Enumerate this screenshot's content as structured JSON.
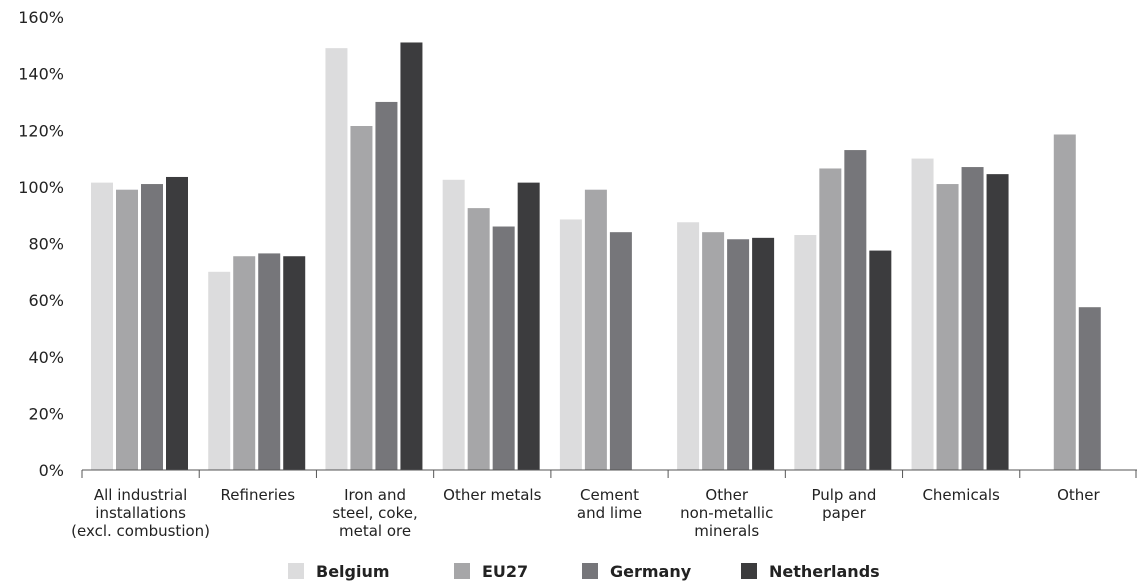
{
  "chart_data": {
    "type": "bar",
    "title": "",
    "xlabel": "",
    "ylabel": "",
    "ylim": [
      0,
      160
    ],
    "yticks": [
      "0%",
      "20%",
      "40%",
      "60%",
      "80%",
      "100%",
      "120%",
      "140%",
      "160%"
    ],
    "grid": false,
    "legend_position": "bottom",
    "categories": [
      [
        "All industrial",
        "installations",
        "(excl. combustion)"
      ],
      [
        "Refineries"
      ],
      [
        "Iron and",
        "steel, coke,",
        "metal ore"
      ],
      [
        "Other metals"
      ],
      [
        "Cement",
        "and lime"
      ],
      [
        "Other",
        "non-metallic",
        "minerals"
      ],
      [
        "Pulp and",
        "paper"
      ],
      [
        "Chemicals"
      ],
      [
        "Other"
      ]
    ],
    "series": [
      {
        "name": "Belgium",
        "color": "#dcdcdd",
        "values": [
          101.5,
          70,
          149,
          102.5,
          88.5,
          87.5,
          83,
          110,
          null
        ]
      },
      {
        "name": "EU27",
        "color": "#a6a6a8",
        "values": [
          99,
          75.5,
          121.5,
          92.5,
          99,
          84,
          106.5,
          101,
          118.5
        ]
      },
      {
        "name": "Germany",
        "color": "#76767a",
        "values": [
          101,
          76.5,
          130,
          86,
          84,
          81.5,
          113,
          107,
          57.5
        ]
      },
      {
        "name": "Netherlands",
        "color": "#3c3c3e",
        "values": [
          103.5,
          75.5,
          151,
          101.5,
          null,
          82,
          77.5,
          104.5,
          null
        ]
      }
    ]
  }
}
